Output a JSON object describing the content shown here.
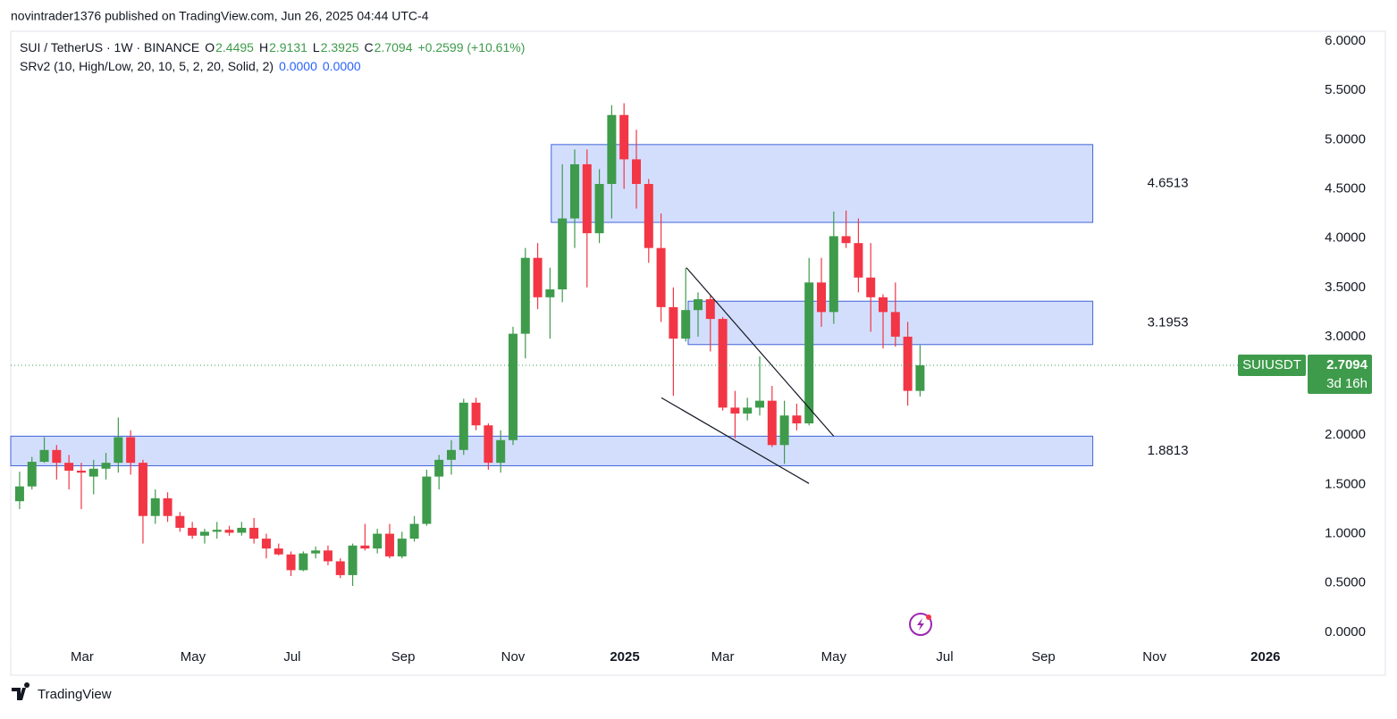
{
  "header": {
    "publisher": "novintrader1376 published on TradingView.com, Jun 26, 2025 04:44 UTC-4"
  },
  "footer": {
    "brand": "TradingView"
  },
  "chart_data": {
    "type": "candlestick",
    "symbol": "SUI / TetherUS · 1W · BINANCE",
    "ohlc_labels": [
      "O",
      "H",
      "L",
      "C"
    ],
    "change": "+0.2599 (+10.61%)",
    "indicator": {
      "name": "SRv2 (10, High/Low, 20, 10, 5, 2, 20, Solid, 2)",
      "values": [
        "0.0000",
        "0.0000"
      ]
    },
    "ticker": "SUIUSDT",
    "countdown": "3d 16h",
    "up_color": "#3e9b4b",
    "down_color": "#f23645",
    "open": [
      1.33,
      1.48,
      1.73,
      1.85,
      1.72,
      1.64,
      1.58,
      1.66,
      1.72,
      1.98,
      1.72,
      1.18,
      1.36,
      1.18,
      1.06,
      0.98,
      1.02,
      1.04,
      1.01,
      1.06,
      0.95,
      0.85,
      0.79,
      0.63,
      0.8,
      0.83,
      0.72,
      0.58,
      0.88,
      0.85,
      1.0,
      0.77,
      0.95,
      1.1,
      1.58,
      1.75,
      1.85,
      2.33,
      2.1,
      1.72,
      1.95,
      3.03,
      3.8,
      3.4,
      3.48,
      4.2,
      4.75,
      4.05,
      4.55,
      5.25,
      4.8,
      4.55,
      3.9,
      3.3,
      2.98,
      3.27,
      3.38,
      3.18,
      2.28,
      2.22,
      2.28,
      2.35,
      1.9,
      2.2,
      2.12,
      3.55,
      3.25,
      4.02,
      3.95,
      3.6,
      3.4,
      3.25,
      3.0,
      2.4495
    ],
    "high": [
      1.63,
      1.78,
      1.98,
      1.9,
      1.8,
      1.72,
      1.75,
      1.82,
      2.18,
      2.05,
      1.75,
      1.45,
      1.42,
      1.22,
      1.12,
      1.05,
      1.12,
      1.08,
      1.12,
      1.16,
      1.0,
      0.9,
      0.82,
      0.82,
      0.87,
      0.88,
      0.75,
      0.9,
      1.1,
      1.05,
      1.1,
      1.02,
      1.18,
      1.65,
      1.8,
      1.95,
      2.37,
      2.38,
      2.12,
      2.05,
      3.1,
      3.9,
      3.95,
      3.7,
      4.75,
      4.9,
      4.9,
      4.7,
      5.35,
      5.37,
      5.1,
      4.6,
      4.25,
      3.5,
      3.7,
      3.45,
      3.42,
      3.2,
      2.45,
      2.38,
      2.8,
      2.5,
      2.35,
      2.32,
      3.8,
      3.8,
      4.27,
      4.28,
      4.2,
      3.95,
      3.43,
      3.55,
      3.15,
      2.9131
    ],
    "low": [
      1.25,
      1.45,
      1.72,
      1.55,
      1.45,
      1.25,
      1.4,
      1.55,
      1.62,
      1.6,
      0.9,
      1.1,
      1.12,
      1.02,
      0.95,
      0.9,
      0.95,
      0.98,
      0.98,
      0.9,
      0.75,
      0.78,
      0.57,
      0.62,
      0.75,
      0.68,
      0.55,
      0.47,
      0.83,
      0.8,
      0.75,
      0.75,
      0.92,
      1.08,
      1.45,
      1.6,
      1.8,
      2.05,
      1.65,
      1.62,
      1.9,
      2.78,
      3.28,
      2.98,
      3.35,
      3.9,
      3.5,
      3.95,
      4.2,
      4.5,
      4.3,
      3.75,
      3.15,
      2.4,
      2.95,
      3.0,
      2.85,
      2.25,
      1.97,
      2.15,
      2.2,
      1.88,
      1.71,
      2.05,
      2.1,
      3.1,
      3.13,
      3.9,
      3.45,
      3.05,
      2.88,
      2.9,
      2.3,
      2.3925
    ],
    "close": [
      1.48,
      1.73,
      1.85,
      1.72,
      1.64,
      1.62,
      1.66,
      1.72,
      1.98,
      1.72,
      1.18,
      1.36,
      1.18,
      1.06,
      0.98,
      1.02,
      1.04,
      1.01,
      1.06,
      0.95,
      0.85,
      0.79,
      0.63,
      0.8,
      0.83,
      0.72,
      0.58,
      0.88,
      0.85,
      1.0,
      0.77,
      0.95,
      1.1,
      1.58,
      1.75,
      1.85,
      2.33,
      2.1,
      1.72,
      1.95,
      3.03,
      3.8,
      3.4,
      3.48,
      4.2,
      4.75,
      4.05,
      4.55,
      5.25,
      4.8,
      4.55,
      3.9,
      3.3,
      2.98,
      3.27,
      3.38,
      3.18,
      2.28,
      2.22,
      2.28,
      2.35,
      1.9,
      2.2,
      2.12,
      3.55,
      3.25,
      4.02,
      3.95,
      3.6,
      3.4,
      3.25,
      3.0,
      2.45,
      2.7094
    ],
    "xlim": [
      -0.72,
      104.2
    ],
    "xticks": [
      {
        "value": 5.07,
        "label": "Mar"
      },
      {
        "value": 14.06,
        "label": "May"
      },
      {
        "value": 22.1,
        "label": "Jul"
      },
      {
        "value": 31.1,
        "label": "Sep"
      },
      {
        "value": 40,
        "label": "Nov"
      },
      {
        "value": 49.06,
        "label": "2025"
      },
      {
        "value": 57,
        "label": "Mar"
      },
      {
        "value": 66,
        "label": "May"
      },
      {
        "value": 75,
        "label": "Jul"
      },
      {
        "value": 83,
        "label": "Sep"
      },
      {
        "value": 92,
        "label": "Nov"
      },
      {
        "value": 101,
        "label": "2026"
      }
    ],
    "ylim": [
      -0.11,
      6.1
    ],
    "yticks": [
      {
        "value": 0,
        "label": "0.0000"
      },
      {
        "value": 0.5,
        "label": "0.5000"
      },
      {
        "value": 1,
        "label": "1.0000"
      },
      {
        "value": 1.5,
        "label": "1.5000"
      },
      {
        "value": 2,
        "label": "2.0000"
      },
      {
        "value": 2.5,
        "label": "2.5000"
      },
      {
        "value": 3,
        "label": "3.0000"
      },
      {
        "value": 3.5,
        "label": "3.5000"
      },
      {
        "value": 4,
        "label": "4.0000"
      },
      {
        "value": 4.5,
        "label": "4.5000"
      },
      {
        "value": 5,
        "label": "5.0000"
      },
      {
        "value": 5.5,
        "label": "5.5000"
      },
      {
        "value": 6,
        "label": "6.0000"
      }
    ],
    "zones": [
      {
        "label": "4.6513",
        "x": [
          43.1,
          87.0
        ],
        "y": [
          4.16,
          4.95
        ]
      },
      {
        "label": "3.1953",
        "x": [
          54.2,
          87.0
        ],
        "y": [
          2.92,
          3.36
        ]
      },
      {
        "label": "1.8813",
        "x": [
          -0.72,
          87.0
        ],
        "y": [
          1.69,
          1.99
        ]
      }
    ],
    "zone_color": "#d3defd",
    "trendlines": [
      {
        "x": [
          54.06,
          66.0
        ],
        "y": [
          3.7,
          1.99
        ]
      },
      {
        "x": [
          52.03,
          63.99
        ],
        "y": [
          2.38,
          1.51
        ]
      }
    ]
  }
}
